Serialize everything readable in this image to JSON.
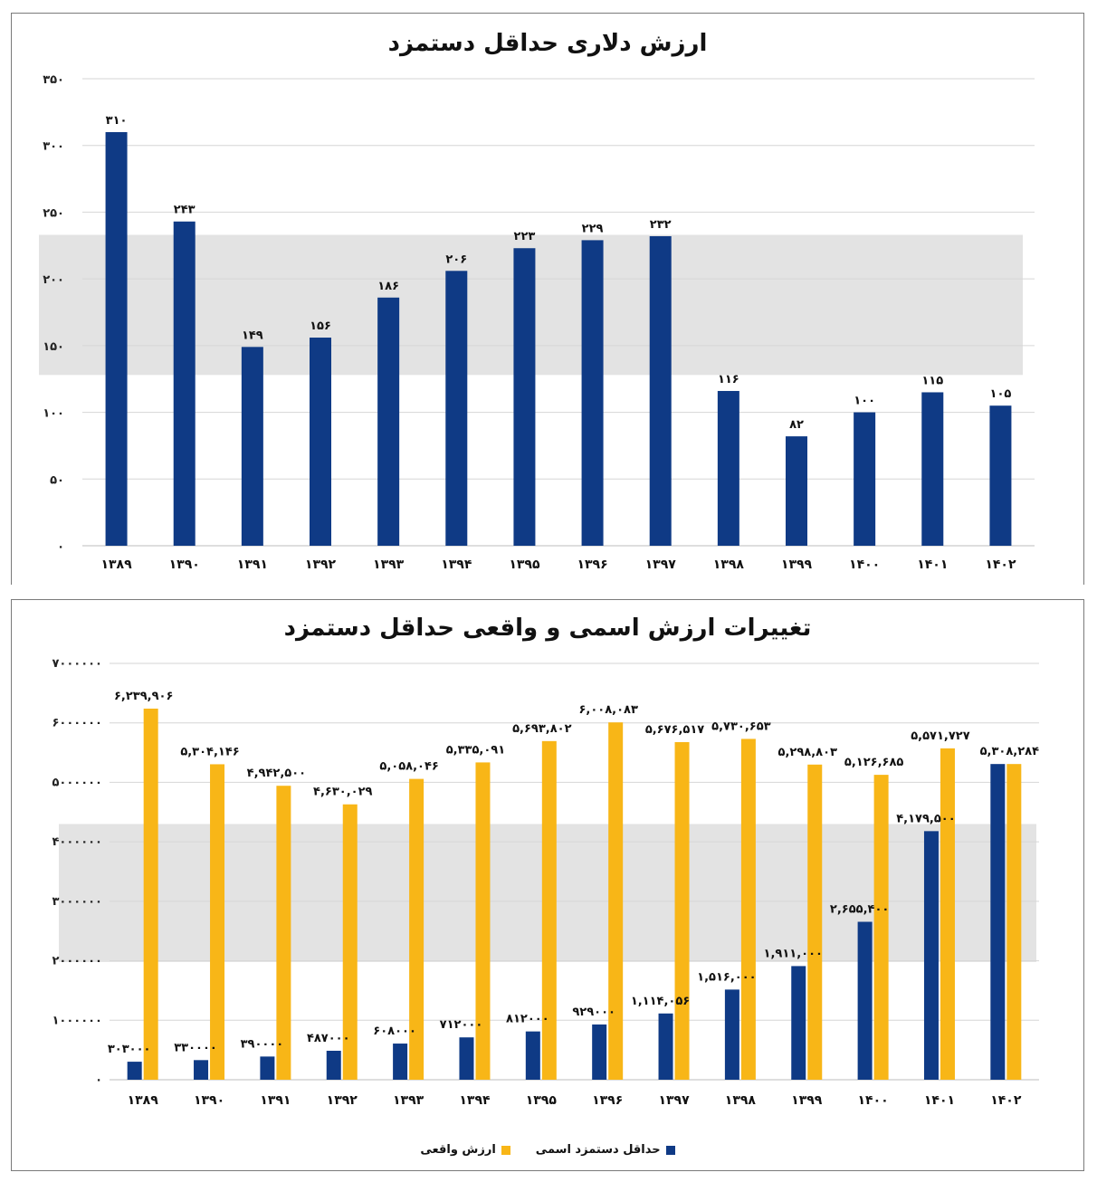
{
  "colors": {
    "nominal": "#0f3a85",
    "real": "#f8b617",
    "band": "#e3e3e3",
    "grid": "#d6d6d6"
  },
  "chart_data": [
    {
      "type": "bar",
      "title": "ارزش دلاری حداقل دستمزد",
      "categories": [
        "۱۳۸۹",
        "۱۳۹۰",
        "۱۳۹۱",
        "۱۳۹۲",
        "۱۳۹۳",
        "۱۳۹۴",
        "۱۳۹۵",
        "۱۳۹۶",
        "۱۳۹۷",
        "۱۳۹۸",
        "۱۳۹۹",
        "۱۴۰۰",
        "۱۴۰۱",
        "۱۴۰۲"
      ],
      "values": [
        310,
        243,
        149,
        156,
        186,
        206,
        223,
        229,
        232,
        116,
        82,
        100,
        115,
        105
      ],
      "value_labels": [
        "۳۱۰",
        "۲۴۳",
        "۱۴۹",
        "۱۵۶",
        "۱۸۶",
        "۲۰۶",
        "۲۲۳",
        "۲۲۹",
        "۲۳۲",
        "۱۱۶",
        "۸۲",
        "۱۰۰",
        "۱۱۵",
        "۱۰۵"
      ],
      "ylim": [
        0,
        350
      ],
      "yticks": [
        0,
        50,
        100,
        150,
        200,
        250,
        300,
        350
      ],
      "ytick_labels": [
        "۰",
        "۵۰",
        "۱۰۰",
        "۱۵۰",
        "۲۰۰",
        "۲۵۰",
        "۳۰۰",
        "۳۵۰"
      ],
      "grid": true
    },
    {
      "type": "bar",
      "title": "تغییرات ارزش اسمی و واقعی حداقل دستمزد",
      "categories": [
        "۱۳۸۹",
        "۱۳۹۰",
        "۱۳۹۱",
        "۱۳۹۲",
        "۱۳۹۳",
        "۱۳۹۴",
        "۱۳۹۵",
        "۱۳۹۶",
        "۱۳۹۷",
        "۱۳۹۸",
        "۱۳۹۹",
        "۱۴۰۰",
        "۱۴۰۱",
        "۱۴۰۲"
      ],
      "series": [
        {
          "name": "حداقل دستمزد اسمی",
          "values": [
            303000,
            330000,
            390000,
            487000,
            608000,
            712000,
            812000,
            929000,
            1114056,
            1516000,
            1911000,
            2655400,
            4179500,
            5308284
          ],
          "value_labels": [
            "۳۰۳۰۰۰",
            "۳۳۰۰۰۰",
            "۳۹۰۰۰۰",
            "۴۸۷۰۰۰",
            "۶۰۸۰۰۰",
            "۷۱۲۰۰۰",
            "۸۱۲۰۰۰",
            "۹۲۹۰۰۰",
            "۱,۱۱۴,۰۵۶",
            "۱,۵۱۶,۰۰۰",
            "۱,۹۱۱,۰۰۰",
            "۲,۶۵۵,۴۰۰",
            "۴,۱۷۹,۵۰۰",
            ""
          ]
        },
        {
          "name": "ارزش واقعی",
          "values": [
            6239906,
            5304146,
            4942500,
            4630029,
            5058046,
            5335091,
            5693802,
            6008083,
            5676517,
            5730653,
            5298803,
            5126685,
            5571727,
            5308284
          ],
          "value_labels": [
            "۶,۲۳۹,۹۰۶",
            "۵,۳۰۴,۱۴۶",
            "۴,۹۴۲,۵۰۰",
            "۴,۶۳۰,۰۲۹",
            "۵,۰۵۸,۰۴۶",
            "۵,۳۳۵,۰۹۱",
            "۵,۶۹۳,۸۰۲",
            "۶,۰۰۸,۰۸۳",
            "۵,۶۷۶,۵۱۷",
            "۵,۷۳۰,۶۵۳",
            "۵,۲۹۸,۸۰۳",
            "۵,۱۲۶,۶۸۵",
            "۵,۵۷۱,۷۲۷",
            "۵,۳۰۸,۲۸۴"
          ]
        }
      ],
      "ylim": [
        0,
        7000000
      ],
      "yticks": [
        0,
        1000000,
        2000000,
        3000000,
        4000000,
        5000000,
        6000000,
        7000000
      ],
      "ytick_labels": [
        "۰",
        "۱۰۰۰۰۰۰",
        "۲۰۰۰۰۰۰",
        "۳۰۰۰۰۰۰",
        "۴۰۰۰۰۰۰",
        "۵۰۰۰۰۰۰",
        "۶۰۰۰۰۰۰",
        "۷۰۰۰۰۰۰"
      ],
      "legend": "bottom",
      "grid": true
    }
  ]
}
